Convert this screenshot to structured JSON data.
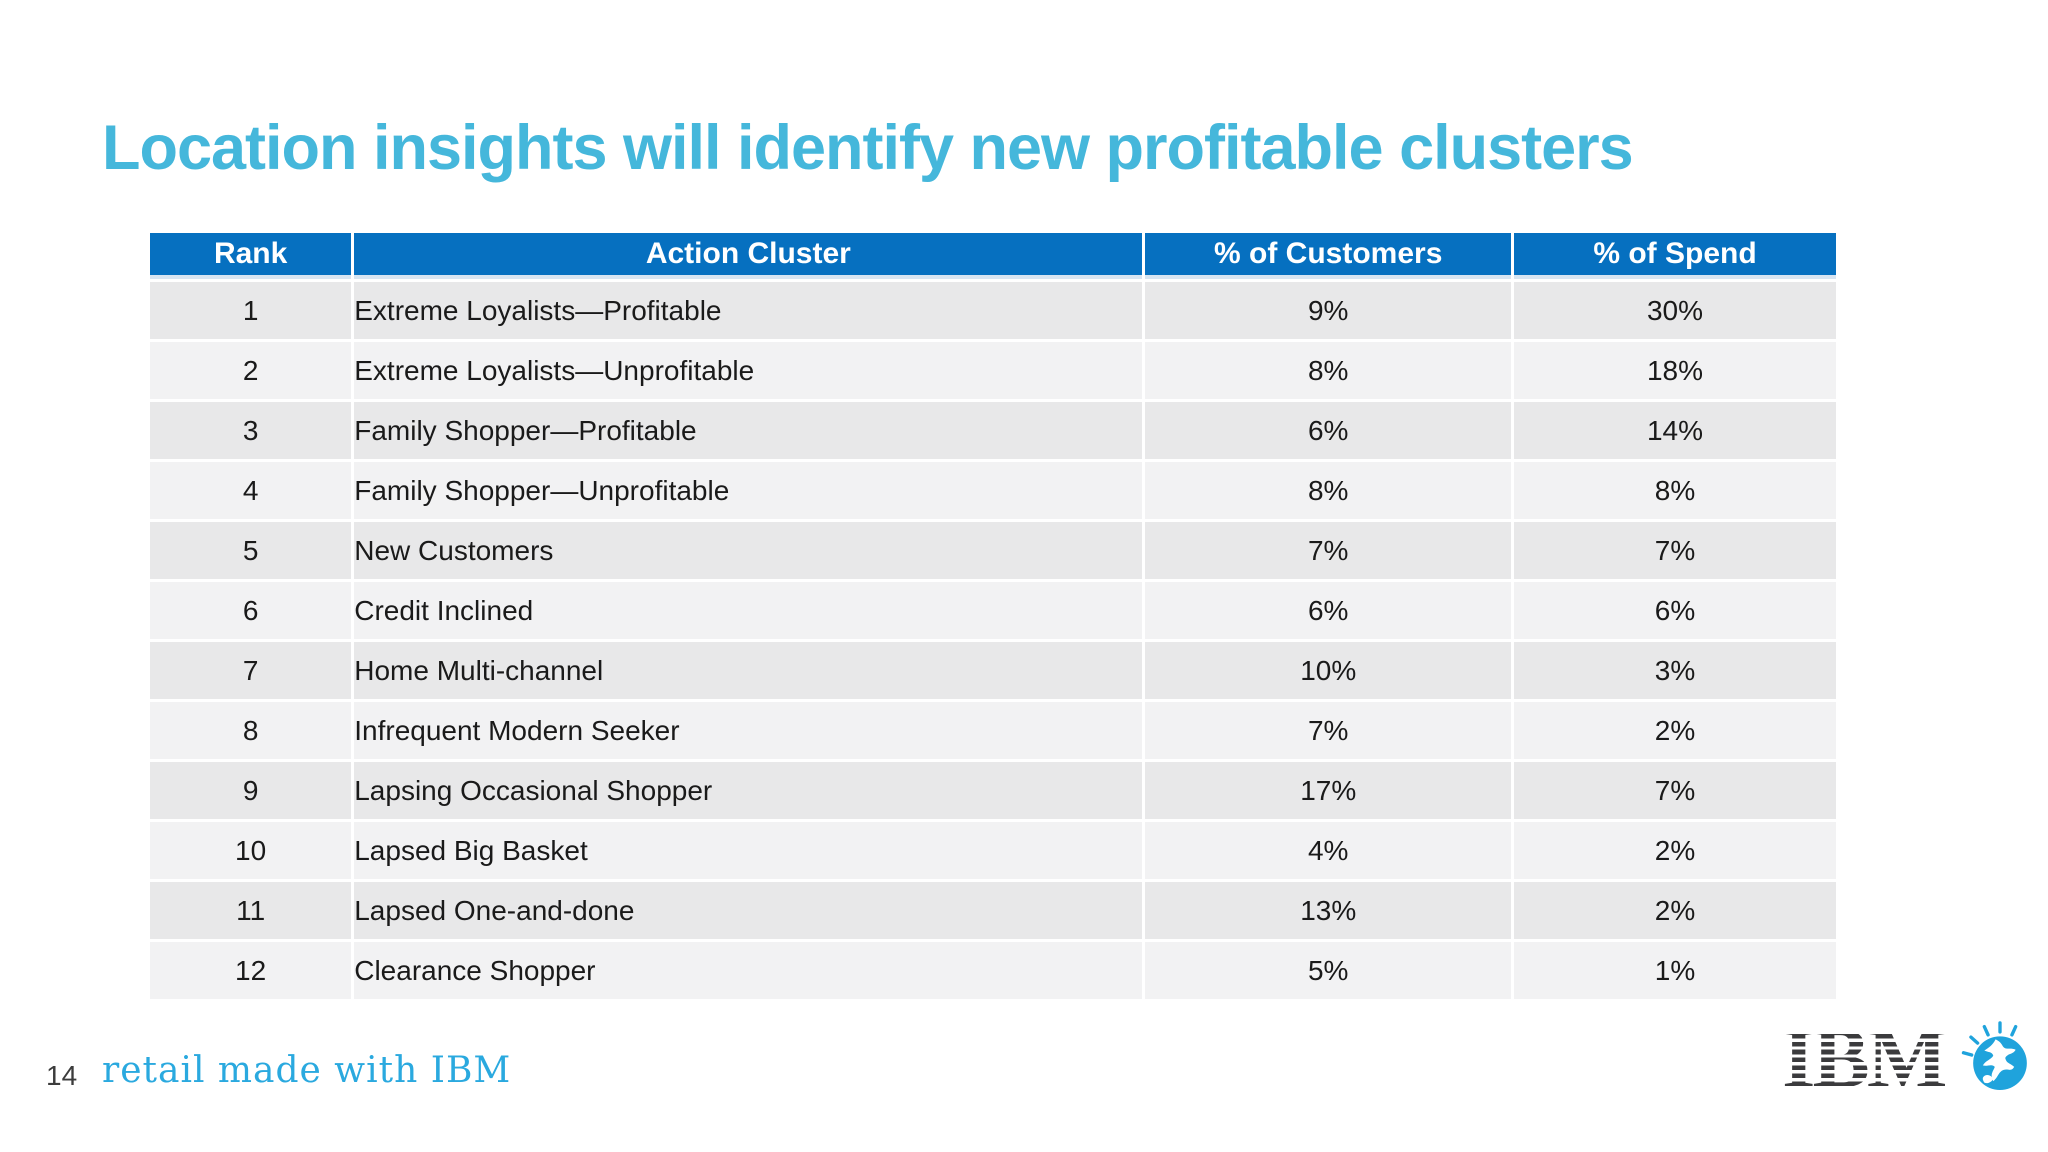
{
  "slide": {
    "title": "Location insights will identify new profitable clusters",
    "page_number": "14",
    "footer_brand": "retail made with IBM",
    "logo_text": "IBM"
  },
  "colors": {
    "title": "#45B7DB",
    "header_bg": "#0670C0",
    "header_text": "#FFFFFF",
    "row_odd": "#E8E8E9",
    "row_even": "#F2F2F3",
    "body_text": "#1A1A1A",
    "footer_brand": "#2AA9DF",
    "page_number": "#3C3C3C",
    "ibm_logo": "#3B3B3D",
    "globe": "#1FA3DC"
  },
  "chart_data": {
    "type": "table",
    "title": "Location insights will identify new profitable clusters",
    "columns": [
      "Rank",
      "Action Cluster",
      "% of Customers",
      "% of Spend"
    ],
    "rows": [
      [
        "1",
        "Extreme Loyalists—Profitable",
        "9%",
        "30%"
      ],
      [
        "2",
        "Extreme Loyalists—Unprofitable",
        "8%",
        "18%"
      ],
      [
        "3",
        "Family Shopper—Profitable",
        "6%",
        "14%"
      ],
      [
        "4",
        "Family Shopper—Unprofitable",
        "8%",
        "8%"
      ],
      [
        "5",
        "New Customers",
        "7%",
        "7%"
      ],
      [
        "6",
        "Credit Inclined",
        "6%",
        "6%"
      ],
      [
        "7",
        "Home Multi-channel",
        "10%",
        "3%"
      ],
      [
        "8",
        "Infrequent Modern Seeker",
        "7%",
        "2%"
      ],
      [
        "9",
        "Lapsing Occasional Shopper",
        "17%",
        "7%"
      ],
      [
        "10",
        "Lapsed Big Basket",
        "4%",
        "2%"
      ],
      [
        "11",
        "Lapsed One-and-done",
        "13%",
        "2%"
      ],
      [
        "12",
        "Clearance Shopper",
        "5%",
        "1%"
      ]
    ]
  }
}
